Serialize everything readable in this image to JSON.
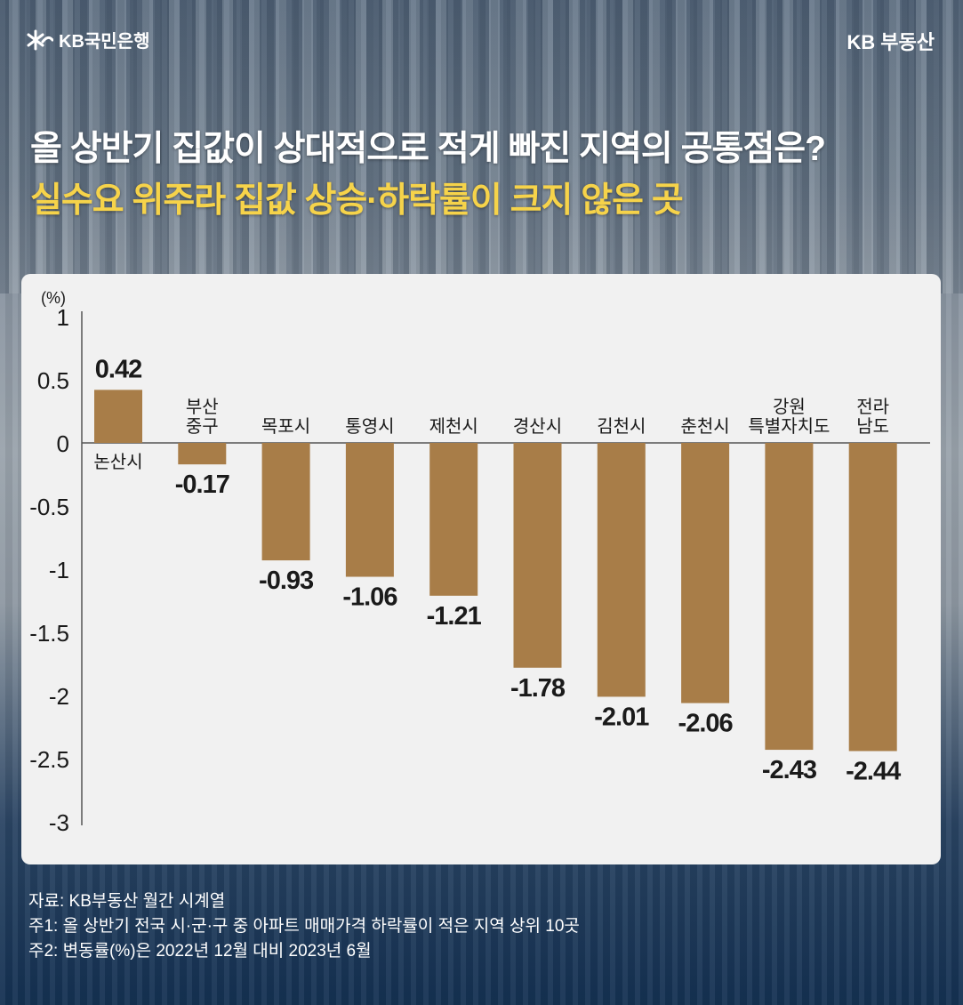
{
  "header": {
    "logo_text": "KB국민은행",
    "brand": "KB 부동산",
    "title_line1": "올 상반기 집값이 상대적으로 적게 빠진 지역의 공통점은?",
    "title_line2": "실수요 위주라 집값 상승·하락률이 크지 않은 곳"
  },
  "colors": {
    "bar": "#a87d48",
    "title_highlight": "#f6d34a",
    "panel": "#f1f1f1",
    "text": "#1a1a1a"
  },
  "chart_data": {
    "type": "bar",
    "categories": [
      [
        "논산시"
      ],
      [
        "부산",
        "중구"
      ],
      [
        "목포시"
      ],
      [
        "통영시"
      ],
      [
        "제천시"
      ],
      [
        "경산시"
      ],
      [
        "김천시"
      ],
      [
        "춘천시"
      ],
      [
        "강원",
        "특별자치도"
      ],
      [
        "전라",
        "남도"
      ]
    ],
    "values": [
      0.42,
      -0.17,
      -0.93,
      -1.06,
      -1.21,
      -1.78,
      -2.01,
      -2.06,
      -2.43,
      -2.44
    ],
    "value_labels": [
      "0.42",
      "-0.17",
      "-0.93",
      "-1.06",
      "-1.21",
      "-1.78",
      "-2.01",
      "-2.06",
      "-2.43",
      "-2.44"
    ],
    "ylabel": "(%)",
    "yticks": [
      "1",
      "0.5",
      "0",
      "-0.5",
      "-1",
      "-1.5",
      "-2",
      "-2.5",
      "-3"
    ],
    "ylim": [
      -3,
      1
    ],
    "grid": false,
    "legend": "none"
  },
  "notes": [
    "자료: KB부동산 월간 시계열",
    "주1: 올 상반기 전국 시·군·구 중 아파트 매매가격  하락률이 적은  지역 상위 10곳",
    "주2: 변동률(%)은 2022년 12월 대비 2023년 6월"
  ]
}
